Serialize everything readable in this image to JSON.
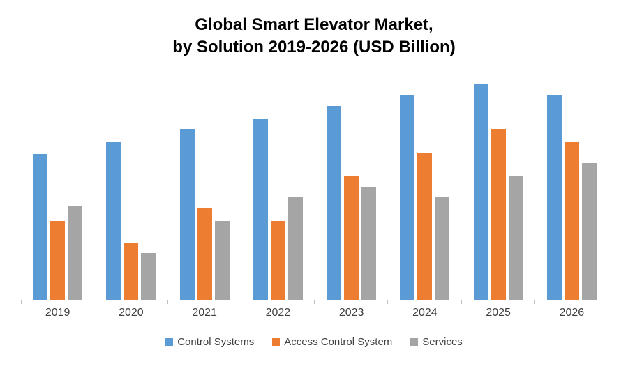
{
  "chart_data": {
    "type": "bar",
    "title_line1": "Global Smart Elevator Market,",
    "title_line2": "by Solution 2019-2026 (USD Billion)",
    "categories": [
      "2019",
      "2020",
      "2021",
      "2022",
      "2023",
      "2024",
      "2025",
      "2026"
    ],
    "series": [
      {
        "name": "Control Systems",
        "color": "#5B9BD5",
        "values": [
          8.1,
          8.8,
          9.5,
          10.1,
          10.8,
          11.4,
          12.0,
          11.4
        ]
      },
      {
        "name": "Access Control System",
        "color": "#ED7D31",
        "values": [
          4.4,
          3.2,
          5.1,
          4.4,
          6.9,
          8.2,
          9.5,
          8.8
        ]
      },
      {
        "name": "Services",
        "color": "#A5A5A5",
        "values": [
          5.2,
          2.6,
          4.4,
          5.7,
          6.3,
          5.7,
          6.9,
          7.6
        ]
      }
    ],
    "xlabel": "",
    "ylabel": "",
    "ylim": [
      0,
      12.5
    ],
    "grid": false,
    "legend_position": "bottom",
    "axis_color": "#BFBFBF"
  }
}
